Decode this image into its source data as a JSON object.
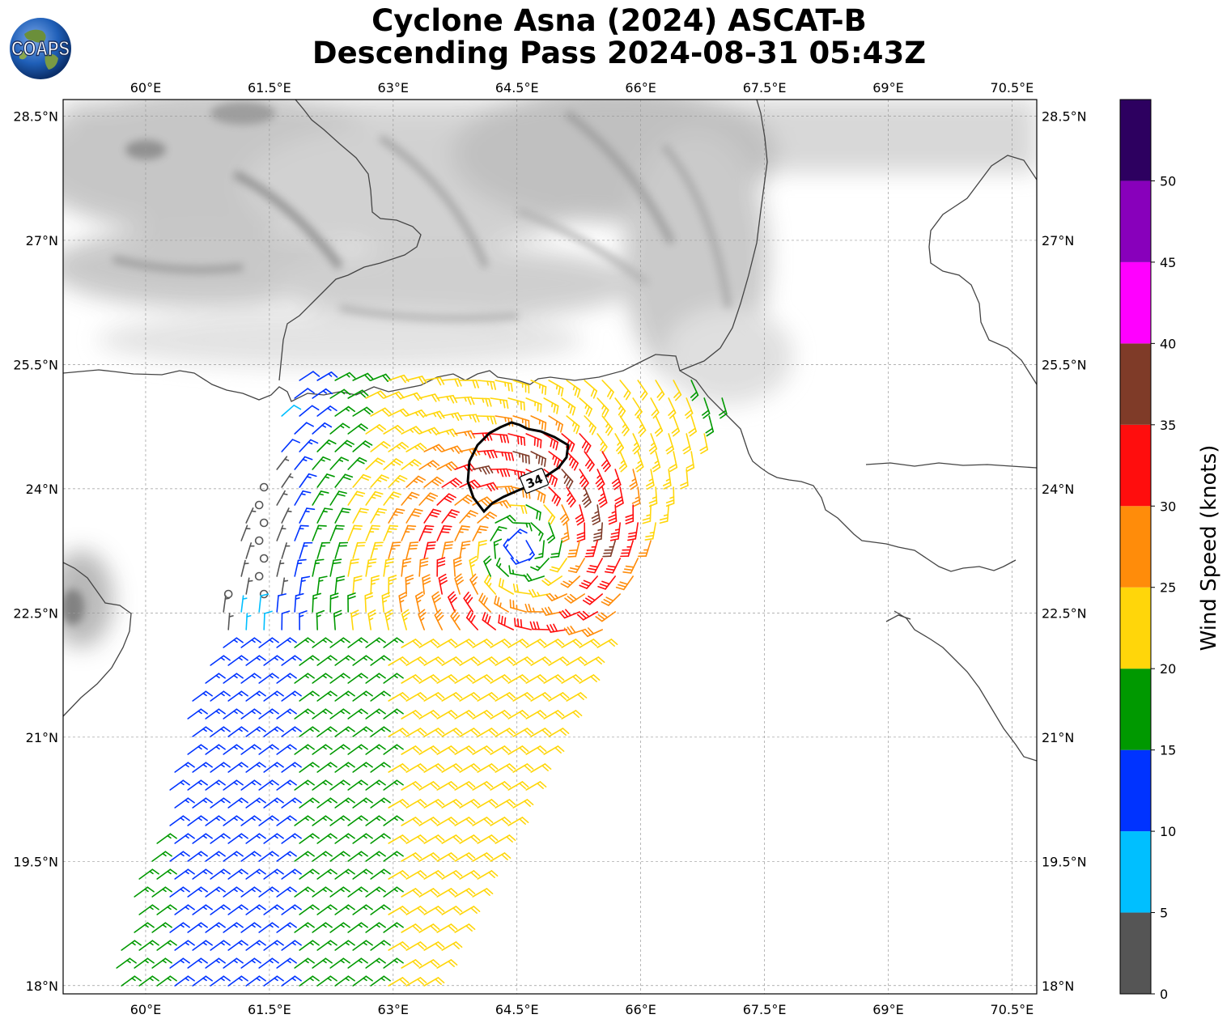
{
  "title": {
    "line1": "Cyclone Asna (2024) ASCAT-B",
    "line2": "Descending Pass 2024-08-31 05:43Z"
  },
  "logo": {
    "text": "COAPS"
  },
  "map": {
    "lon_range": [
      59.0,
      70.8
    ],
    "lat_range": [
      17.9,
      28.7
    ],
    "lon_ticks": [
      "60°E",
      "61.5°E",
      "63°E",
      "64.5°E",
      "66°E",
      "67.5°E",
      "69°E",
      "70.5°E"
    ],
    "lat_ticks": [
      "28.5°N",
      "27°N",
      "25.5°N",
      "24°N",
      "22.5°N",
      "21°N",
      "19.5°N",
      "18°N"
    ],
    "contour_label": "34",
    "center": {
      "lon": 64.55,
      "lat": 23.3
    }
  },
  "colorbar": {
    "label": "Wind Speed (knots)",
    "ticks": [
      "0",
      "5",
      "10",
      "15",
      "20",
      "25",
      "30",
      "35",
      "40",
      "45",
      "50"
    ],
    "colors": [
      "#555555",
      "#00bfff",
      "#0033ff",
      "#009900",
      "#ffd60a",
      "#ff8c0a",
      "#ff0d0d",
      "#7f3b28",
      "#ff00ff",
      "#8800bb",
      "#2d0060"
    ]
  }
}
